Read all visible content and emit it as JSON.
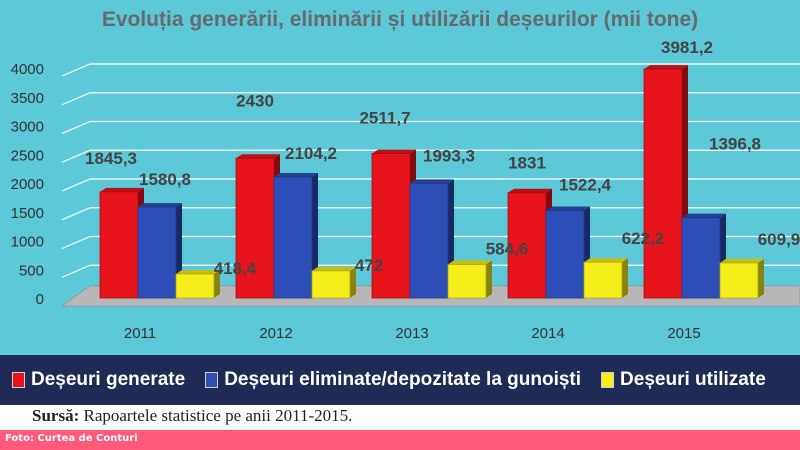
{
  "chart_data": {
    "type": "bar",
    "title": "Evoluția generării, eliminării și utilizării deșeurilor (mii tone)",
    "categories": [
      "2011",
      "2012",
      "2013",
      "2014",
      "2015"
    ],
    "series": [
      {
        "name": "Deșeuri generate",
        "values": [
          1845.3,
          2430,
          2511.7,
          1831,
          3981.2
        ],
        "labels": [
          "1845,3",
          "2430",
          "2511,7",
          "1831",
          "3981,2"
        ],
        "color": "#e8141c"
      },
      {
        "name": "Deșeuri eliminate/depozitate la gunoiști",
        "values": [
          1580.8,
          2104.2,
          1993.3,
          1522.4,
          1396.8
        ],
        "labels": [
          "1580,8",
          "2104,2",
          "1993,3",
          "1522,4",
          "1396,8"
        ],
        "color": "#2e4fb8"
      },
      {
        "name": "Deșeuri utilizate",
        "values": [
          418.4,
          472,
          584.6,
          622.2,
          609.9
        ],
        "labels": [
          "418,4",
          "472",
          "584,6",
          "622,2",
          "609,9"
        ],
        "color": "#f5ee1a"
      }
    ],
    "yticks": [
      "4000",
      "3500",
      "3000",
      "2500",
      "2000",
      "1500",
      "1000",
      "500",
      "0"
    ],
    "ylim": [
      0,
      4000
    ],
    "grid": true,
    "legend_position": "bottom"
  },
  "source": {
    "label": "Sursă:",
    "text": "Rapoartele statistice pe anii 2011-2015."
  },
  "photo_credit": "Foto: Curtea de Conturi"
}
